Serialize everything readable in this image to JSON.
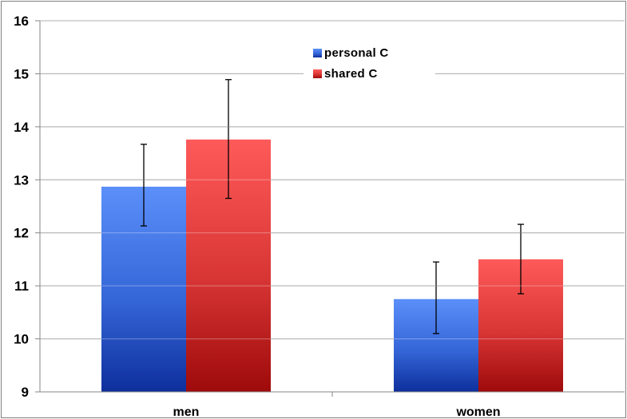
{
  "chart_data": {
    "type": "bar",
    "title": "",
    "xlabel": "",
    "ylabel": "",
    "ylim": [
      9,
      16
    ],
    "yticks": [
      9,
      10,
      11,
      12,
      13,
      14,
      15,
      16
    ],
    "grid": true,
    "legend_position": "top-center",
    "categories": [
      "men",
      "women"
    ],
    "series": [
      {
        "name": "personal C",
        "color": "#3b6fe0",
        "values": [
          12.87,
          10.75
        ],
        "error_low": [
          12.13,
          10.1
        ],
        "error_high": [
          13.67,
          11.45
        ]
      },
      {
        "name": "shared C",
        "color": "#e03a3a",
        "values": [
          13.76,
          11.5
        ],
        "error_low": [
          12.65,
          10.85
        ],
        "error_high": [
          14.89,
          12.16
        ]
      }
    ]
  }
}
